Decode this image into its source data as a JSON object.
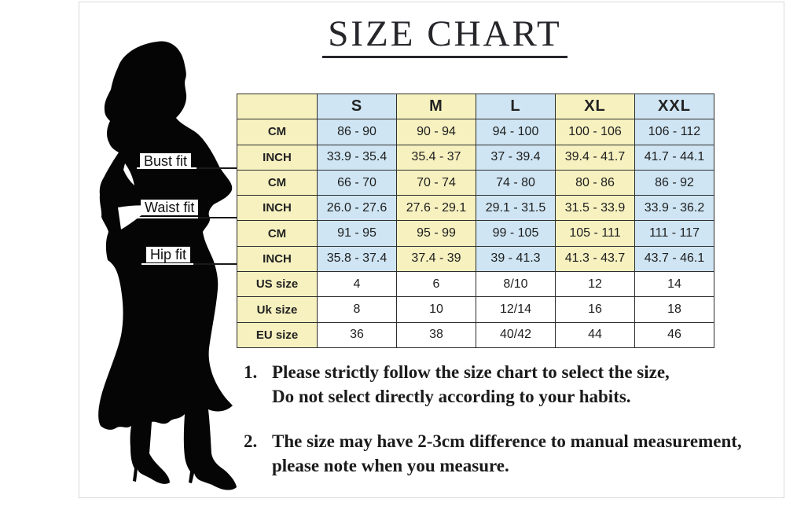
{
  "title": {
    "text": "SIZE CHART"
  },
  "figure": {
    "silhouette": "woman-silhouette",
    "labels": [
      {
        "text": "Bust fit"
      },
      {
        "text": "Waist fit"
      },
      {
        "text": "Hip fit"
      }
    ]
  },
  "chart_data": {
    "type": "table",
    "title": "SIZE CHART",
    "columns": [
      "",
      "S",
      "M",
      "L",
      "XL",
      "XXL"
    ],
    "rows": [
      {
        "section": "Bust fit",
        "label": "CM",
        "values": [
          "86 - 90",
          "90 - 94",
          "94 - 100",
          "100 - 106",
          "106 - 112"
        ]
      },
      {
        "section": "Bust fit",
        "label": "INCH",
        "values": [
          "33.9 - 35.4",
          "35.4 - 37",
          "37 - 39.4",
          "39.4 - 41.7",
          "41.7 - 44.1"
        ]
      },
      {
        "section": "Waist fit",
        "label": "CM",
        "values": [
          "66 - 70",
          "70 - 74",
          "74 - 80",
          "80 - 86",
          "86 - 92"
        ]
      },
      {
        "section": "Waist fit",
        "label": "INCH",
        "values": [
          "26.0 - 27.6",
          "27.6 - 29.1",
          "29.1 - 31.5",
          "31.5 - 33.9",
          "33.9 - 36.2"
        ]
      },
      {
        "section": "Hip fit",
        "label": "CM",
        "values": [
          "91 - 95",
          "95 - 99",
          "99 - 105",
          "105 - 111",
          "111 - 117"
        ]
      },
      {
        "section": "Hip fit",
        "label": "INCH",
        "values": [
          "35.8 - 37.4",
          "37.4 - 39",
          "39 - 41.3",
          "41.3 - 43.7",
          "43.7 - 46.1"
        ]
      },
      {
        "section": "",
        "label": "US size",
        "values": [
          "4",
          "6",
          "8/10",
          "12",
          "14"
        ]
      },
      {
        "section": "",
        "label": "Uk size",
        "values": [
          "8",
          "10",
          "12/14",
          "16",
          "18"
        ]
      },
      {
        "section": "",
        "label": "EU size",
        "values": [
          "36",
          "38",
          "40/42",
          "44",
          "46"
        ]
      }
    ],
    "colors": {
      "cream": "#f6f1bf",
      "blue": "#cfe5f3",
      "white": "#ffffff",
      "border": "#2d2d2d"
    },
    "layout": {
      "grid": "on",
      "measurement_rows_pattern": "data columns alternate blue/cream, label column cream",
      "size_rows_pattern": "white data cells"
    }
  },
  "notes": [
    {
      "number": "1.",
      "lines": [
        "Please strictly follow the size chart to select the size,",
        "Do not select directly according to your habits."
      ]
    },
    {
      "number": "2.",
      "lines": [
        "The size may have 2-3cm difference  to manual measurement,",
        "please note when you measure."
      ]
    }
  ]
}
